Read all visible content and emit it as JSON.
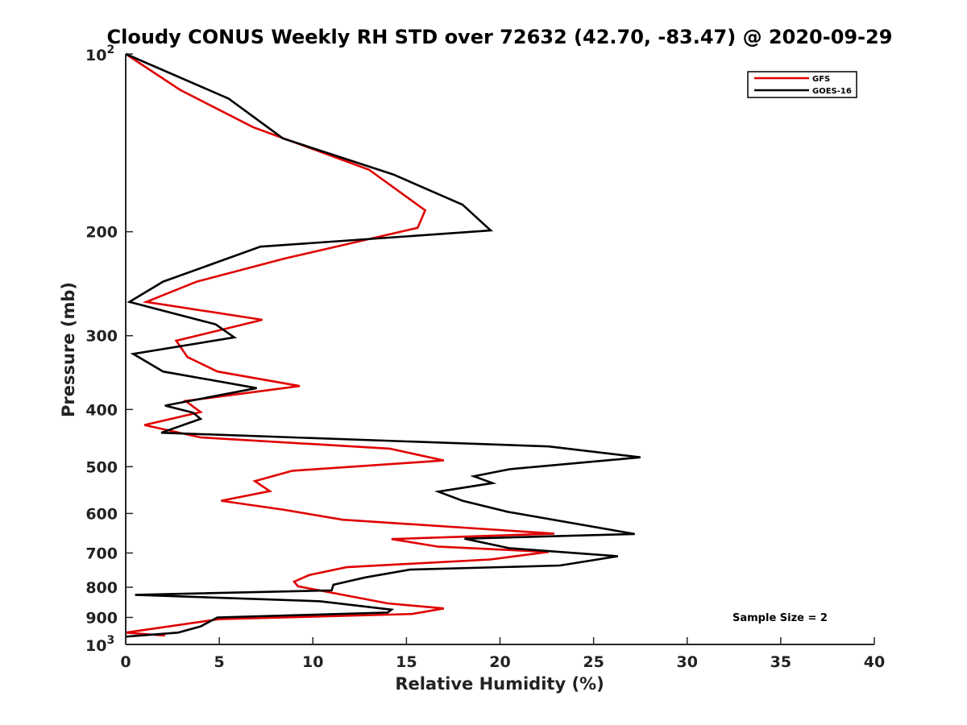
{
  "chart_data": {
    "type": "line",
    "title": "Cloudy CONUS Weekly RH STD over 72632 (42.70, -83.47) @ 2020-09-29",
    "xlabel": "Relative Humidity (%)",
    "ylabel": "Pressure (mb)",
    "xlim": [
      0,
      40
    ],
    "ylim": [
      100,
      1000
    ],
    "y_scale": "log",
    "y_reversed": true,
    "grid": false,
    "legend_position": "top-right",
    "x_ticks": [
      "0",
      "5",
      "10",
      "15",
      "20",
      "25",
      "30",
      "35",
      "40"
    ],
    "y_ticks": [
      {
        "value": 100,
        "base": "10",
        "exp": "2"
      },
      {
        "value": 200,
        "label": "200"
      },
      {
        "value": 300,
        "label": "300"
      },
      {
        "value": 400,
        "label": "400"
      },
      {
        "value": 500,
        "label": "500"
      },
      {
        "value": 600,
        "label": "600"
      },
      {
        "value": 700,
        "label": "700"
      },
      {
        "value": 800,
        "label": "800"
      },
      {
        "value": 900,
        "label": "900"
      },
      {
        "value": 1000,
        "base": "10",
        "exp": "3"
      }
    ],
    "annotation": "Sample Size = 2",
    "series": [
      {
        "name": "GFS",
        "color": "#e00000",
        "points": [
          [
            0.0,
            100
          ],
          [
            2.9,
            115
          ],
          [
            6.8,
            133
          ],
          [
            13.0,
            157
          ],
          [
            16.0,
            184
          ],
          [
            15.6,
            197
          ],
          [
            8.5,
            222
          ],
          [
            3.8,
            243
          ],
          [
            1.1,
            263
          ],
          [
            7.3,
            282
          ],
          [
            2.7,
            306
          ],
          [
            3.3,
            326
          ],
          [
            4.9,
            345
          ],
          [
            9.3,
            365
          ],
          [
            3.2,
            387
          ],
          [
            4.0,
            404
          ],
          [
            1.0,
            425
          ],
          [
            4.0,
            446
          ],
          [
            14.1,
            466
          ],
          [
            17.0,
            488
          ],
          [
            8.9,
            508
          ],
          [
            6.9,
            529
          ],
          [
            7.7,
            550
          ],
          [
            5.1,
            571
          ],
          [
            8.4,
            591
          ],
          [
            11.6,
            615
          ],
          [
            22.9,
            649
          ],
          [
            14.2,
            663
          ],
          [
            16.7,
            683
          ],
          [
            22.6,
            697
          ],
          [
            19.5,
            718
          ],
          [
            11.8,
            740
          ],
          [
            9.8,
            763
          ],
          [
            9.0,
            783
          ],
          [
            9.2,
            797
          ],
          [
            14.0,
            852
          ],
          [
            17.0,
            869
          ],
          [
            15.3,
            888
          ],
          [
            5.0,
            906
          ],
          [
            0.0,
            955
          ],
          [
            2.1,
            966
          ]
        ]
      },
      {
        "name": "GOES-16",
        "color": "#000000",
        "points": [
          [
            0.0,
            100
          ],
          [
            5.5,
            119
          ],
          [
            8.4,
            139
          ],
          [
            14.3,
            160
          ],
          [
            18.0,
            180
          ],
          [
            19.5,
            199
          ],
          [
            7.2,
            212
          ],
          [
            2.0,
            243
          ],
          [
            0.2,
            263
          ],
          [
            4.8,
            287
          ],
          [
            5.8,
            302
          ],
          [
            0.4,
            322
          ],
          [
            2.0,
            345
          ],
          [
            7.0,
            368
          ],
          [
            2.1,
            394
          ],
          [
            3.6,
            405
          ],
          [
            4.0,
            415
          ],
          [
            1.9,
            438
          ],
          [
            22.6,
            462
          ],
          [
            27.5,
            482
          ],
          [
            20.5,
            505
          ],
          [
            18.6,
            519
          ],
          [
            19.6,
            533
          ],
          [
            16.7,
            551
          ],
          [
            18.0,
            571
          ],
          [
            20.4,
            596
          ],
          [
            27.2,
            650
          ],
          [
            18.1,
            662
          ],
          [
            20.5,
            687
          ],
          [
            26.3,
            709
          ],
          [
            23.2,
            735
          ],
          [
            15.2,
            747
          ],
          [
            12.8,
            770
          ],
          [
            11.1,
            792
          ],
          [
            11.0,
            810
          ],
          [
            0.5,
            824
          ],
          [
            10.4,
            845
          ],
          [
            14.2,
            873
          ],
          [
            14.0,
            883
          ],
          [
            4.9,
            900
          ],
          [
            4.0,
            932
          ],
          [
            2.8,
            955
          ],
          [
            0.0,
            970
          ]
        ]
      }
    ]
  }
}
